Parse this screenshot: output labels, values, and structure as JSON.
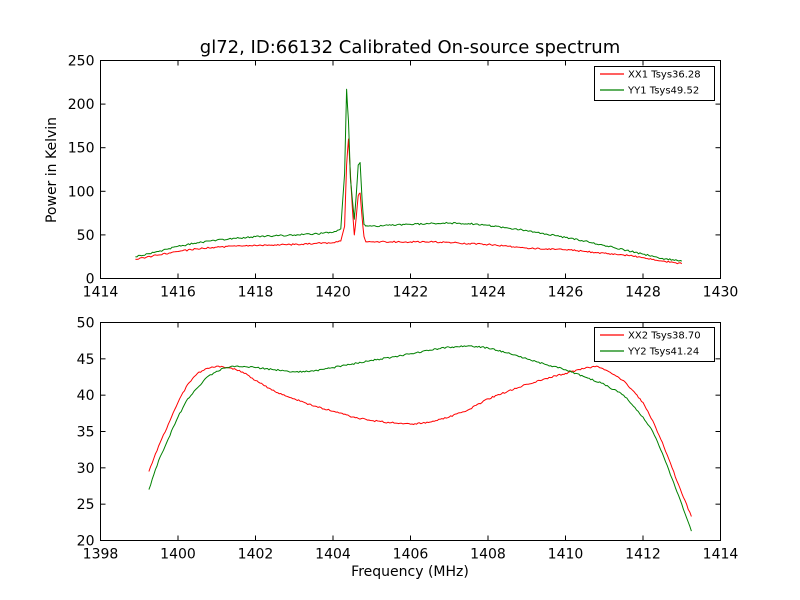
{
  "chart_data": [
    {
      "type": "line",
      "title": "gl72, ID:66132 Calibrated On-source spectrum",
      "xlabel": "",
      "ylabel": "Power in Kelvin",
      "xlim": [
        1414,
        1430
      ],
      "ylim": [
        0,
        250
      ],
      "xticks": [
        "1414",
        "1416",
        "1418",
        "1420",
        "1422",
        "1424",
        "1426",
        "1428",
        "1430"
      ],
      "yticks": [
        "0",
        "50",
        "100",
        "150",
        "200",
        "250"
      ],
      "grid": false,
      "legend": "top-right",
      "series": [
        {
          "name": "XX1 Tsys36.28",
          "color": "#ff0000",
          "x": [
            1414.9,
            1415.5,
            1416,
            1416.5,
            1417,
            1417.5,
            1418,
            1418.5,
            1419,
            1419.5,
            1420,
            1420.2,
            1420.3,
            1420.35,
            1420.4,
            1420.45,
            1420.5,
            1420.55,
            1420.6,
            1420.65,
            1420.7,
            1420.75,
            1420.8,
            1420.85,
            1420.9,
            1421,
            1421.5,
            1422,
            1422.5,
            1423,
            1423.5,
            1424,
            1424.5,
            1425,
            1425.5,
            1426,
            1426.5,
            1427,
            1427.5,
            1428,
            1428.5,
            1429
          ],
          "values": [
            22,
            27,
            31,
            34,
            36,
            37,
            38,
            38.5,
            39,
            40,
            41,
            43,
            60,
            130,
            160,
            120,
            80,
            50,
            70,
            95,
            98,
            70,
            48,
            42,
            42,
            42,
            42,
            42,
            42,
            41.5,
            40,
            39,
            37,
            35,
            34,
            33,
            31,
            29,
            27,
            24,
            20,
            17
          ]
        },
        {
          "name": "YY1 Tsys49.52",
          "color": "#008000",
          "x": [
            1414.9,
            1415.5,
            1416,
            1416.5,
            1417,
            1417.5,
            1418,
            1418.5,
            1419,
            1419.5,
            1420,
            1420.2,
            1420.3,
            1420.35,
            1420.4,
            1420.45,
            1420.5,
            1420.55,
            1420.6,
            1420.65,
            1420.7,
            1420.75,
            1420.8,
            1420.85,
            1420.9,
            1421,
            1421.5,
            1422,
            1422.5,
            1423,
            1423.5,
            1424,
            1424.5,
            1425,
            1425.5,
            1426,
            1426.5,
            1427,
            1427.5,
            1428,
            1428.5,
            1429
          ],
          "values": [
            25,
            31,
            37,
            41,
            44,
            46,
            48,
            49,
            50,
            51,
            53,
            57,
            120,
            217,
            180,
            115,
            90,
            68,
            95,
            130,
            133,
            90,
            62,
            60,
            60,
            60,
            61,
            62,
            63,
            63.5,
            63,
            61,
            58,
            55,
            51,
            47,
            43,
            38,
            33,
            28,
            23,
            20
          ]
        }
      ]
    },
    {
      "type": "line",
      "title": "",
      "xlabel": "Frequency (MHz)",
      "ylabel": "",
      "xlim": [
        1398,
        1414
      ],
      "ylim": [
        20,
        50
      ],
      "xticks": [
        "1398",
        "1400",
        "1402",
        "1404",
        "1406",
        "1408",
        "1410",
        "1412",
        "1414"
      ],
      "yticks": [
        "20",
        "25",
        "30",
        "35",
        "40",
        "45",
        "50"
      ],
      "grid": false,
      "legend": "top-right",
      "series": [
        {
          "name": "XX2 Tsys38.70",
          "color": "#ff0000",
          "x": [
            1399.25,
            1399.5,
            1399.75,
            1400,
            1400.25,
            1400.5,
            1400.75,
            1401,
            1401.25,
            1401.5,
            1401.75,
            1402,
            1402.5,
            1403,
            1403.5,
            1404,
            1404.5,
            1405,
            1405.5,
            1406,
            1406.5,
            1407,
            1407.5,
            1408,
            1408.5,
            1409,
            1409.5,
            1410,
            1410.5,
            1410.8,
            1411,
            1411.5,
            1412,
            1412.25,
            1412.5,
            1412.75,
            1413,
            1413.25
          ],
          "values": [
            29.5,
            33,
            36,
            39,
            41.5,
            43,
            43.7,
            44,
            43.8,
            43.5,
            43,
            42,
            40.5,
            39.5,
            38.5,
            37.8,
            37,
            36.5,
            36.2,
            36,
            36.3,
            37,
            38,
            39.5,
            40.5,
            41.5,
            42.3,
            43,
            43.7,
            44,
            43.5,
            42,
            39,
            36.5,
            33.5,
            30,
            26.5,
            23.3
          ]
        },
        {
          "name": "YY2 Tsys41.24",
          "color": "#008000",
          "x": [
            1399.25,
            1399.5,
            1399.75,
            1400,
            1400.25,
            1400.5,
            1400.75,
            1401,
            1401.25,
            1401.5,
            1401.75,
            1402,
            1402.5,
            1403,
            1403.5,
            1404,
            1404.5,
            1405,
            1405.5,
            1406,
            1406.5,
            1407,
            1407.5,
            1408,
            1408.5,
            1409,
            1409.5,
            1410,
            1410.5,
            1411,
            1411.5,
            1411.75,
            1412,
            1412.25,
            1412.5,
            1412.75,
            1413,
            1413.25
          ],
          "values": [
            27,
            31,
            34,
            37,
            39.5,
            41,
            42.5,
            43.3,
            43.8,
            44,
            43.9,
            43.8,
            43.5,
            43.2,
            43.3,
            43.8,
            44.3,
            44.8,
            45.2,
            45.7,
            46.2,
            46.6,
            46.8,
            46.5,
            45.8,
            45,
            44.2,
            43.5,
            42.5,
            41.5,
            40,
            38.5,
            37,
            35,
            32,
            28.5,
            25,
            21.3
          ]
        }
      ]
    }
  ]
}
